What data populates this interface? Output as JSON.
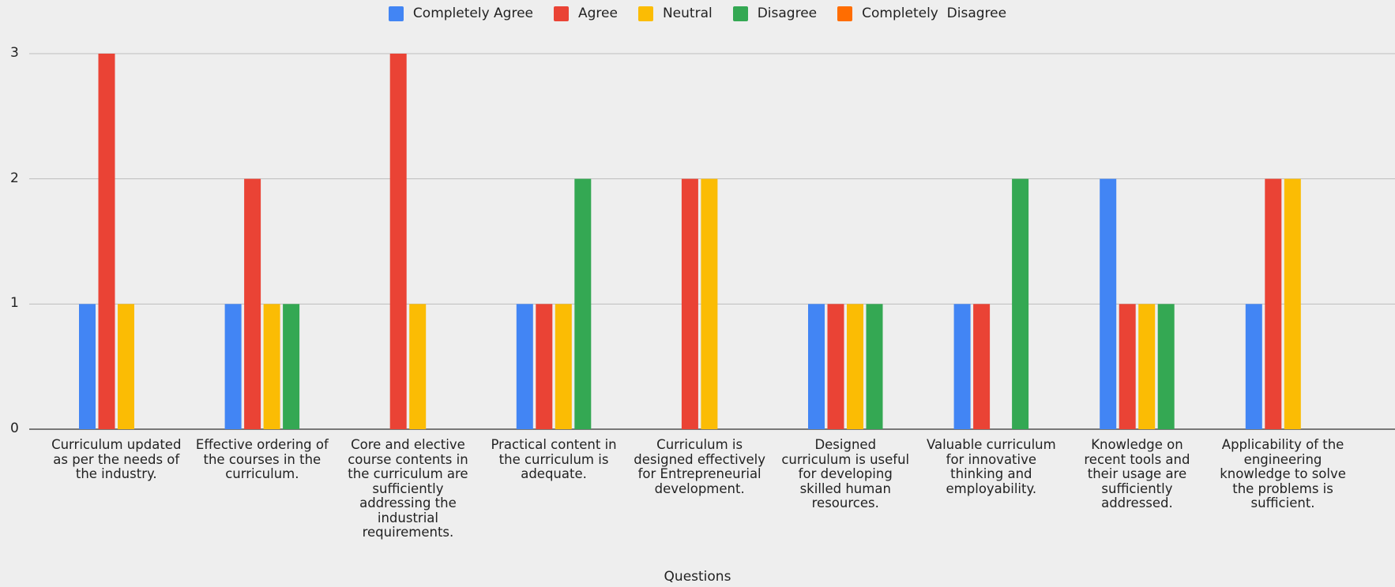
{
  "chart_data": {
    "type": "bar",
    "xlabel": "Questions",
    "ylabel": "",
    "ylim": [
      0,
      3
    ],
    "yticks": [
      "0",
      "1",
      "2",
      "3"
    ],
    "grid": true,
    "legend_position": "top-center",
    "categories": [
      "Curriculum updated as per the needs of the industry.",
      "Effective ordering of the courses in the curriculum.",
      "Core and elective course contents in the curriculum are sufficiently addressing the industrial requirements.",
      "Practical content in the curriculum is adequate.",
      "Curriculum is designed effectively for Entrepreneurial development.",
      "Designed curriculum is useful for developing skilled human resources.",
      "Valuable curriculum for innovative thinking and employability.",
      "Knowledge on recent tools and their usage are sufficiently addressed.",
      "Applicability of the engineering knowledge to solve the problems is sufficient."
    ],
    "category_lines": [
      [
        "Curriculum updated",
        "as per the needs of",
        "the industry."
      ],
      [
        "Effective ordering of",
        "the courses in the",
        "curriculum."
      ],
      [
        "Core and elective",
        "course contents in",
        "the curriculum are",
        "sufficiently",
        "addressing the",
        "industrial",
        "requirements."
      ],
      [
        "Practical content in",
        "the curriculum is",
        "adequate."
      ],
      [
        "Curriculum is",
        "designed effectively",
        "for Entrepreneurial",
        "development."
      ],
      [
        "Designed",
        "curriculum is useful",
        "for developing",
        "skilled human",
        "resources."
      ],
      [
        "Valuable curriculum",
        "for innovative",
        "thinking and",
        "employability."
      ],
      [
        "Knowledge on",
        "recent tools and",
        "their usage are",
        "sufficiently",
        "addressed."
      ],
      [
        "Applicability of the",
        "engineering",
        "knowledge to solve",
        "the problems is",
        "sufficient."
      ]
    ],
    "series": [
      {
        "name": "Completely Agree",
        "color": "#4285f4",
        "values": [
          1,
          1,
          0,
          1,
          0,
          1,
          1,
          2,
          1
        ]
      },
      {
        "name": "Agree",
        "color": "#ea4335",
        "values": [
          3,
          2,
          3,
          1,
          2,
          1,
          1,
          1,
          2
        ]
      },
      {
        "name": "Neutral",
        "color": "#fbbc04",
        "values": [
          1,
          1,
          1,
          1,
          2,
          1,
          0,
          1,
          2
        ]
      },
      {
        "name": "Disagree",
        "color": "#34a853",
        "values": [
          0,
          1,
          0,
          2,
          0,
          1,
          2,
          1,
          0
        ]
      },
      {
        "name": "Completely  Disagree",
        "color": "#ff6d01",
        "values": [
          0,
          0,
          0,
          0,
          0,
          0,
          0,
          0,
          0
        ]
      }
    ]
  }
}
